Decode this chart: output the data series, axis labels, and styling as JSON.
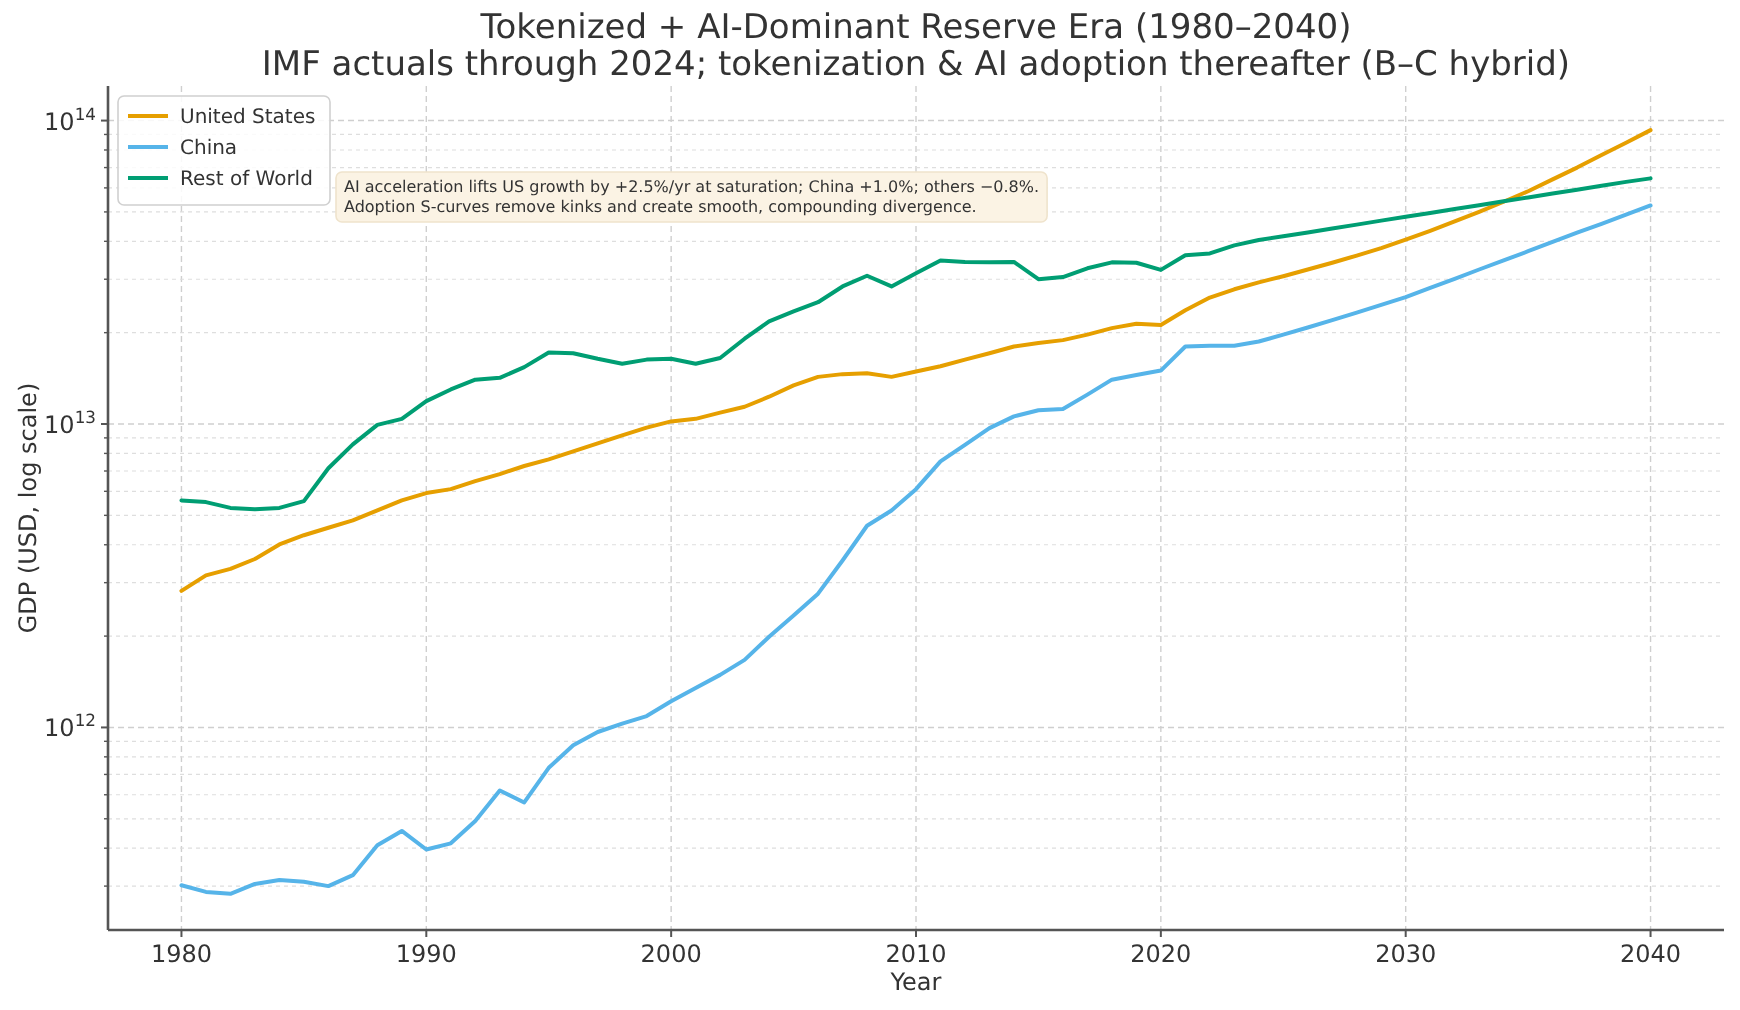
{
  "chart_data": {
    "type": "line",
    "title": "Tokenized + AI-Dominant Reserve Era (1980–2040)",
    "subtitle": "IMF actuals through 2024; tokenization & AI adoption thereafter (B–C hybrid)",
    "xlabel": "Year",
    "ylabel": "GDP (USD, log scale)",
    "annotations": [
      "AI acceleration lifts US growth by +2.5%/yr at saturation; China +1.0%; others −0.8%.\nAdoption S-curves remove kinks and create smooth, compounding divergence."
    ],
    "x": [
      1980,
      1981,
      1982,
      1983,
      1984,
      1985,
      1986,
      1987,
      1988,
      1989,
      1990,
      1991,
      1992,
      1993,
      1994,
      1995,
      1996,
      1997,
      1998,
      1999,
      2000,
      2001,
      2002,
      2003,
      2004,
      2005,
      2006,
      2007,
      2008,
      2009,
      2010,
      2011,
      2012,
      2013,
      2014,
      2015,
      2016,
      2017,
      2018,
      2019,
      2020,
      2021,
      2022,
      2023,
      2024,
      2025,
      2026,
      2027,
      2028,
      2029,
      2030,
      2031,
      2032,
      2033,
      2034,
      2035,
      2036,
      2037,
      2038,
      2039,
      2040
    ],
    "series": [
      {
        "name": "United States",
        "color": "#e69f00",
        "values": [
          2820000000000.0,
          3170000000000.0,
          3330000000000.0,
          3590000000000.0,
          4010000000000.0,
          4300000000000.0,
          4550000000000.0,
          4810000000000.0,
          5190000000000.0,
          5600000000000.0,
          5920000000000.0,
          6100000000000.0,
          6480000000000.0,
          6840000000000.0,
          7270000000000.0,
          7650000000000.0,
          8120000000000.0,
          8630000000000.0,
          9170000000000.0,
          9730000000000.0,
          10200000000000.0,
          10400000000000.0,
          10900000000000.0,
          11400000000000.0,
          12300000000000.0,
          13400000000000.0,
          14300000000000.0,
          14600000000000.0,
          14700000000000.0,
          14300000000000.0,
          14900000000000.0,
          15500000000000.0,
          16300000000000.0,
          17100000000000.0,
          18000000000000.0,
          18500000000000.0,
          18900000000000.0,
          19700000000000.0,
          20700000000000.0,
          21400000000000.0,
          21200000000000.0,
          23700000000000.0,
          26100000000000.0,
          27800000000000.0,
          29300000000000.0,
          30700000000000.0,
          32300000000000.0,
          34000000000000.0,
          35900000000000.0,
          38000000000000.0,
          40500000000000.0,
          43300000000000.0,
          46500000000000.0,
          50000000000000.0,
          54000000000000.0,
          58500000000000.0,
          64000000000000.0,
          70000000000000.0,
          77000000000000.0,
          84500000000000.0,
          93000000000000.0
        ]
      },
      {
        "name": "China",
        "color": "#56b4e9",
        "values": [
          302000000000.0,
          287000000000.0,
          283000000000.0,
          305000000000.0,
          314000000000.0,
          310000000000.0,
          300000000000.0,
          326000000000.0,
          409000000000.0,
          456000000000.0,
          396000000000.0,
          415000000000.0,
          492000000000.0,
          620000000000.0,
          566000000000.0,
          736000000000.0,
          873000000000.0,
          966000000000.0,
          1030000000000.0,
          1090000000000.0,
          1220000000000.0,
          1350000000000.0,
          1490000000000.0,
          1670000000000.0,
          1990000000000.0,
          2340000000000.0,
          2760000000000.0,
          3550000000000.0,
          4620000000000.0,
          5190000000000.0,
          6100000000000.0,
          7530000000000.0,
          8540000000000.0,
          9690000000000.0,
          10600000000000.0,
          11100000000000.0,
          11200000000000.0,
          12500000000000.0,
          14000000000000.0,
          14500000000000.0,
          15000000000000.0,
          18000000000000.0,
          18100000000000.0,
          18100000000000.0,
          18700000000000.0,
          19700000000000.0,
          20800000000000.0,
          22000000000000.0,
          23300000000000.0,
          24700000000000.0,
          26200000000000.0,
          28100000000000.0,
          30100000000000.0,
          32300000000000.0,
          34600000000000.0,
          37100000000000.0,
          39800000000000.0,
          42700000000000.0,
          45700000000000.0,
          49000000000000.0,
          52500000000000.0
        ]
      },
      {
        "name": "Rest of World",
        "color": "#009e73",
        "values": [
          5600000000000.0,
          5530000000000.0,
          5290000000000.0,
          5240000000000.0,
          5290000000000.0,
          5570000000000.0,
          7150000000000.0,
          8570000000000.0,
          9930000000000.0,
          10400000000000.0,
          11900000000000.0,
          13000000000000.0,
          14000000000000.0,
          14200000000000.0,
          15400000000000.0,
          17200000000000.0,
          17100000000000.0,
          16400000000000.0,
          15800000000000.0,
          16300000000000.0,
          16400000000000.0,
          15800000000000.0,
          16500000000000.0,
          19100000000000.0,
          21800000000000.0,
          23500000000000.0,
          25200000000000.0,
          28400000000000.0,
          30800000000000.0,
          28400000000000.0,
          31400000000000.0,
          34600000000000.0,
          34200000000000.0,
          34100000000000.0,
          34200000000000.0,
          30000000000000.0,
          30500000000000.0,
          32600000000000.0,
          34100000000000.0,
          34000000000000.0,
          32200000000000.0,
          36000000000000.0,
          36500000000000.0,
          38800000000000.0,
          40400000000000.0,
          41600000000000.0,
          42800000000000.0,
          44100000000000.0,
          45400000000000.0,
          46800000000000.0,
          48200000000000.0,
          49600000000000.0,
          51100000000000.0,
          52600000000000.0,
          54200000000000.0,
          55800000000000.0,
          57500000000000.0,
          59200000000000.0,
          61000000000000.0,
          62800000000000.0,
          64500000000000.0
        ]
      }
    ],
    "xlim": [
      1977,
      2043
    ],
    "xticks": [
      1980,
      1990,
      2000,
      2010,
      2020,
      2030,
      2040
    ],
    "ylim": [
      215000000000.0,
      130000000000000.0
    ],
    "yticks": [
      {
        "value": 300000000000.0,
        "label": null
      },
      {
        "value": 400000000000.0,
        "label": null
      },
      {
        "value": 500000000000.0,
        "label": null
      },
      {
        "value": 600000000000.0,
        "label": null
      },
      {
        "value": 700000000000.0,
        "label": null
      },
      {
        "value": 800000000000.0,
        "label": null
      },
      {
        "value": 900000000000.0,
        "label": null
      },
      {
        "value": 1000000000000.0,
        "label": "10$^{12}$"
      },
      {
        "value": 2000000000000.0,
        "label": null
      },
      {
        "value": 3000000000000.0,
        "label": null
      },
      {
        "value": 4000000000000.0,
        "label": null
      },
      {
        "value": 5000000000000.0,
        "label": null
      },
      {
        "value": 6000000000000.0,
        "label": null
      },
      {
        "value": 7000000000000.0,
        "label": null
      },
      {
        "value": 8000000000000.0,
        "label": null
      },
      {
        "value": 9000000000000.0,
        "label": null
      },
      {
        "value": 10000000000000.0,
        "label": "10$^{13}$"
      },
      {
        "value": 20000000000000.0,
        "label": null
      },
      {
        "value": 30000000000000.0,
        "label": null
      },
      {
        "value": 40000000000000.0,
        "label": null
      },
      {
        "value": 50000000000000.0,
        "label": null
      },
      {
        "value": 60000000000000.0,
        "label": null
      },
      {
        "value": 70000000000000.0,
        "label": null
      },
      {
        "value": 80000000000000.0,
        "label": null
      },
      {
        "value": 90000000000000.0,
        "label": null
      },
      {
        "value": 100000000000000.0,
        "label": "10$^{14}$"
      }
    ],
    "log": "y",
    "grid": true,
    "legend": "top left"
  }
}
